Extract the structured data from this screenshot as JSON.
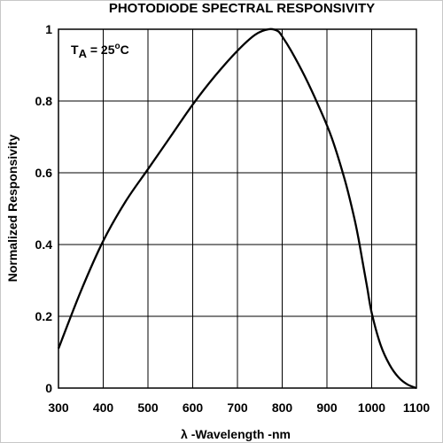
{
  "chart_data": {
    "type": "line",
    "title": "PHOTODIODE SPECTRAL RESPONSIVITY",
    "xlabel": "λ -Wavelength -nm",
    "ylabel": "Normalized Responsivity",
    "annotation": {
      "T": "T",
      "sub": "A",
      "eq": " = 25",
      "sup": "o",
      "unit": "C"
    },
    "xlim": [
      300,
      1100
    ],
    "ylim": [
      0,
      1
    ],
    "grid": true,
    "x_ticks": [
      "300",
      "400",
      "500",
      "600",
      "700",
      "800",
      "900",
      "1000",
      "1100"
    ],
    "y_ticks": [
      "0",
      "0.2",
      "0.4",
      "0.6",
      "0.8",
      "1"
    ],
    "series": [
      {
        "x": [
          300,
          350,
          400,
          450,
          500,
          550,
          600,
          650,
          700,
          740,
          770,
          790,
          800,
          820,
          850,
          880,
          910,
          940,
          960,
          970,
          980,
          990,
          1000,
          1020,
          1040,
          1060,
          1080,
          1100
        ],
        "y": [
          0.11,
          0.27,
          0.41,
          0.52,
          0.61,
          0.7,
          0.79,
          0.87,
          0.94,
          0.985,
          1.0,
          0.995,
          0.98,
          0.94,
          0.87,
          0.79,
          0.7,
          0.58,
          0.48,
          0.42,
          0.35,
          0.28,
          0.21,
          0.12,
          0.065,
          0.03,
          0.01,
          0.0
        ]
      }
    ]
  }
}
